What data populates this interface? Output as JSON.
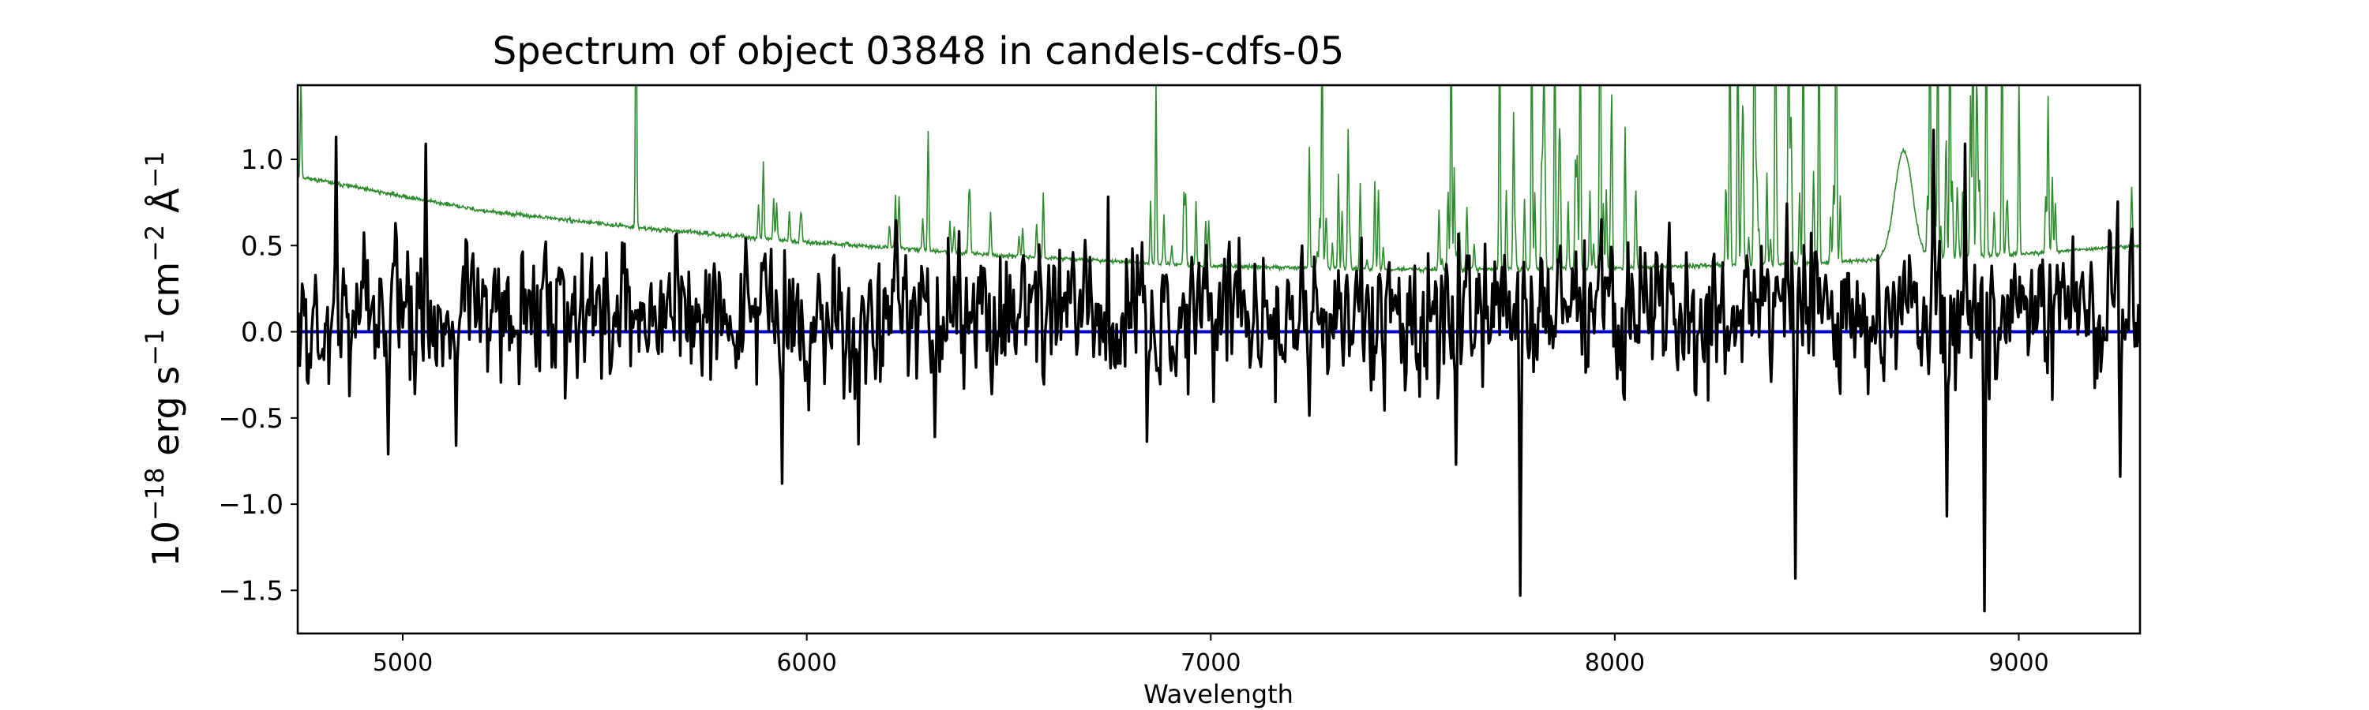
{
  "chart_data": {
    "type": "line",
    "title": "Spectrum of object 03848 in candels-cdfs-05",
    "xlabel": "Wavelength",
    "ylabel_parts": [
      {
        "text": "10",
        "sup": false
      },
      {
        "text": "−18",
        "sup": true
      },
      {
        "text": " erg s",
        "sup": false
      },
      {
        "text": "−1",
        "sup": true
      },
      {
        "text": " cm",
        "sup": false
      },
      {
        "text": "−2",
        "sup": true
      },
      {
        "text": " Å",
        "sup": false
      },
      {
        "text": "−1",
        "sup": true
      }
    ],
    "xlim": [
      4740,
      9300
    ],
    "ylim": [
      -1.75,
      1.43
    ],
    "xticks": [
      5000,
      6000,
      7000,
      8000,
      9000
    ],
    "xtick_labels": [
      "5000",
      "6000",
      "7000",
      "8000",
      "9000"
    ],
    "yticks": [
      1.0,
      0.5,
      0.0,
      -0.5,
      -1.0,
      -1.5
    ],
    "ytick_labels": [
      "1.0",
      "0.5",
      "0.0",
      "−0.5",
      "−1.0",
      "−1.5"
    ],
    "grid": false,
    "legend": "none",
    "series": [
      {
        "role": "flux",
        "color": "#000000",
        "noise_seed": 5,
        "noise_sigma": 0.27,
        "base_level": 0.1,
        "anchors": [
          {
            "x": 4965,
            "y": -0.71
          },
          {
            "x": 5058,
            "y": 1.09
          },
          {
            "x": 5132,
            "y": -0.66
          },
          {
            "x": 5940,
            "y": -0.88
          },
          {
            "x": 6318,
            "y": -0.61
          },
          {
            "x": 7608,
            "y": -0.77
          },
          {
            "x": 7765,
            "y": -1.53
          },
          {
            "x": 8447,
            "y": -1.43
          },
          {
            "x": 8823,
            "y": -1.07
          },
          {
            "x": 8916,
            "y": -1.62
          },
          {
            "x": 9250,
            "y": -0.84
          },
          {
            "x": 8790,
            "y": 1.17
          },
          {
            "x": 8866,
            "y": 1.09
          },
          {
            "x": 4836,
            "y": 1.13
          }
        ]
      },
      {
        "role": "error",
        "color": "#2e8b2e",
        "noise_seed": 11,
        "continuum": [
          {
            "x": 4745,
            "y": 0.9
          },
          {
            "x": 4900,
            "y": 0.83
          },
          {
            "x": 5200,
            "y": 0.7
          },
          {
            "x": 5600,
            "y": 0.6
          },
          {
            "x": 6000,
            "y": 0.52
          },
          {
            "x": 6500,
            "y": 0.44
          },
          {
            "x": 7000,
            "y": 0.38
          },
          {
            "x": 7500,
            "y": 0.36
          },
          {
            "x": 8000,
            "y": 0.37
          },
          {
            "x": 8500,
            "y": 0.4
          },
          {
            "x": 9000,
            "y": 0.45
          },
          {
            "x": 9300,
            "y": 0.5
          }
        ],
        "bumps": [
          {
            "center": 8715,
            "height": 0.63,
            "width": 22
          }
        ],
        "lines": [
          {
            "x": 4748,
            "h": 0.55
          },
          {
            "x": 5577,
            "h": 1.5
          },
          {
            "x": 5892,
            "h": 0.45
          },
          {
            "x": 6300,
            "h": 0.7
          },
          {
            "x": 6865,
            "h": 0.75
          },
          {
            "x": 7276,
            "h": 1.02
          },
          {
            "x": 7340,
            "h": 0.8
          },
          {
            "x": 7244,
            "h": 0.7
          },
          {
            "x": 7316,
            "h": 0.55
          },
          {
            "x": 7370,
            "h": 0.5
          },
          {
            "x": 7595,
            "h": 1.5
          },
          {
            "x": 7715,
            "h": 1.5
          },
          {
            "x": 7750,
            "h": 0.9
          },
          {
            "x": 7794,
            "h": 1.5
          },
          {
            "x": 7825,
            "h": 1.0
          },
          {
            "x": 7852,
            "h": 1.5
          },
          {
            "x": 7915,
            "h": 1.5
          },
          {
            "x": 7964,
            "h": 1.5
          },
          {
            "x": 7993,
            "h": 0.9
          },
          {
            "x": 8025,
            "h": 0.8
          },
          {
            "x": 8285,
            "h": 1.5
          },
          {
            "x": 8305,
            "h": 1.5
          },
          {
            "x": 8345,
            "h": 1.5
          },
          {
            "x": 8398,
            "h": 1.5
          },
          {
            "x": 8430,
            "h": 1.2
          },
          {
            "x": 8466,
            "h": 1.5
          },
          {
            "x": 8505,
            "h": 1.5
          },
          {
            "x": 8548,
            "h": 1.5
          },
          {
            "x": 8780,
            "h": 1.5
          },
          {
            "x": 8800,
            "h": 1.5
          },
          {
            "x": 8830,
            "h": 1.5
          },
          {
            "x": 8886,
            "h": 1.5
          },
          {
            "x": 8920,
            "h": 1.5
          },
          {
            "x": 8958,
            "h": 1.5
          },
          {
            "x": 9000,
            "h": 1.0
          },
          {
            "x": 9072,
            "h": 0.9
          },
          {
            "x": 9280,
            "h": 0.35
          }
        ],
        "line_ranges": [
          {
            "from": 5880,
            "to": 6000,
            "count": 6,
            "max_h": 0.2
          },
          {
            "from": 6200,
            "to": 6600,
            "count": 14,
            "max_h": 0.3
          },
          {
            "from": 6820,
            "to": 7000,
            "count": 10,
            "max_h": 0.45
          },
          {
            "from": 7200,
            "to": 7460,
            "count": 12,
            "max_h": 0.5
          },
          {
            "from": 7560,
            "to": 8060,
            "count": 30,
            "max_h": 0.6
          },
          {
            "from": 8260,
            "to": 8560,
            "count": 24,
            "max_h": 0.55
          },
          {
            "from": 8760,
            "to": 9100,
            "count": 24,
            "max_h": 0.55
          }
        ]
      },
      {
        "role": "zero",
        "color": "#0000cd",
        "y": 0.0
      }
    ]
  }
}
